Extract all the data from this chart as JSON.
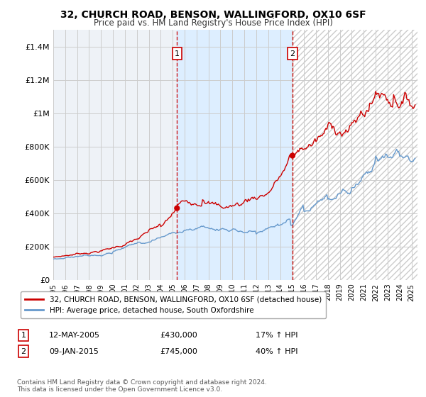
{
  "title": "32, CHURCH ROAD, BENSON, WALLINGFORD, OX10 6SF",
  "subtitle": "Price paid vs. HM Land Registry's House Price Index (HPI)",
  "legend_line1": "32, CHURCH ROAD, BENSON, WALLINGFORD, OX10 6SF (detached house)",
  "legend_line2": "HPI: Average price, detached house, South Oxfordshire",
  "transaction1_date": "12-MAY-2005",
  "transaction1_price": 430000,
  "transaction1_hpi": "17% ↑ HPI",
  "transaction1_date_num": 2005.36,
  "transaction2_date": "09-JAN-2015",
  "transaction2_price": 745000,
  "transaction2_hpi": "40% ↑ HPI",
  "transaction2_date_num": 2015.03,
  "footer": "Contains HM Land Registry data © Crown copyright and database right 2024.\nThis data is licensed under the Open Government Licence v3.0.",
  "ylim_min": 0,
  "ylim_max": 1500000,
  "xlim_min": 1995.0,
  "xlim_max": 2025.5,
  "yticks": [
    0,
    200000,
    400000,
    600000,
    800000,
    1000000,
    1200000,
    1400000
  ],
  "ytick_labels": [
    "£0",
    "£200K",
    "£400K",
    "£600K",
    "£800K",
    "£1M",
    "£1.2M",
    "£1.4M"
  ],
  "xticks": [
    1995,
    1996,
    1997,
    1998,
    1999,
    2000,
    2001,
    2002,
    2003,
    2004,
    2005,
    2006,
    2007,
    2008,
    2009,
    2010,
    2011,
    2012,
    2013,
    2014,
    2015,
    2016,
    2017,
    2018,
    2019,
    2020,
    2021,
    2022,
    2023,
    2024,
    2025
  ],
  "red_line_color": "#cc0000",
  "blue_line_color": "#6699cc",
  "vline_color": "#cc0000",
  "shade_color": "#ddeeff",
  "hatch_color": "#cccccc",
  "grid_color": "#cccccc",
  "background_color": "#ffffff",
  "plot_bg_color": "#eef2f7"
}
